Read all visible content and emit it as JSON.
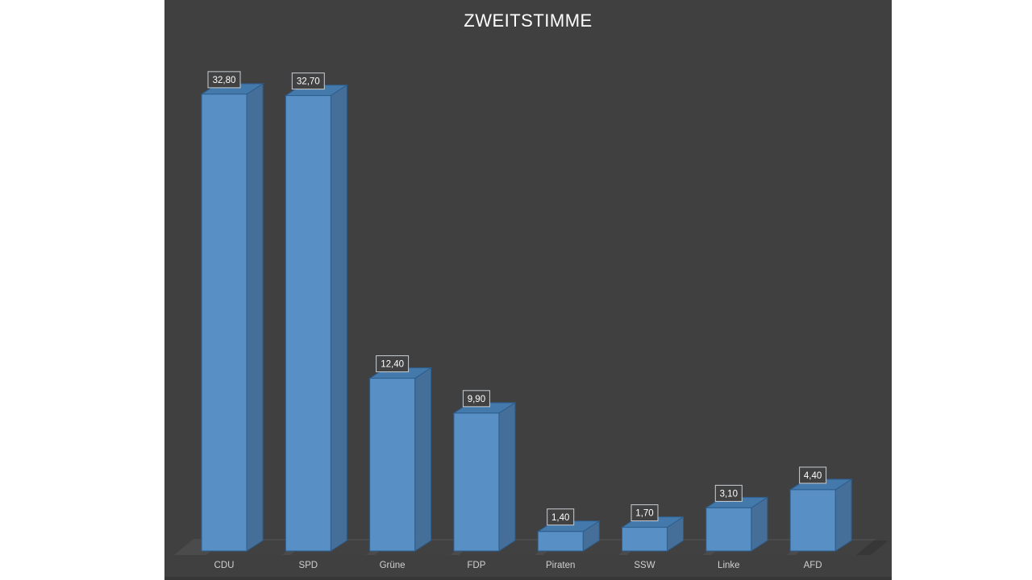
{
  "window": {
    "background": "#ffffff"
  },
  "chart": {
    "title": "ZWEITSTIMME",
    "colors": {
      "background": "#404041",
      "floor": "#4b4b4b",
      "bottom_edge": "#373737",
      "title_text": "#ffffff",
      "category_text": "#cfcfcf",
      "data_label_text": "#ffffff",
      "data_label_border": "#c9ced3",
      "data_label_fill": "#414141",
      "bar_front": "#5890c5",
      "bar_top": "#4479ab",
      "bar_side": "#456f98",
      "bar_stroke": "#2d5d8c",
      "shadow": "rgba(0,0,0,0.13)"
    }
  },
  "chart_data": {
    "type": "bar",
    "style": "3d-column",
    "title": "ZWEITSTIMME",
    "categories": [
      "CDU",
      "SPD",
      "Grüne",
      "FDP",
      "Piraten",
      "SSW",
      "Linke",
      "AFD"
    ],
    "values": [
      32.8,
      32.7,
      12.4,
      9.9,
      1.4,
      1.7,
      3.1,
      4.4
    ],
    "data_labels": [
      "32,80",
      "32,70",
      "12,40",
      "9,90",
      "1,40",
      "1,70",
      "3,10",
      "4,40"
    ],
    "xlabel": "",
    "ylabel": "",
    "ylim": [
      0,
      35
    ],
    "grid": false,
    "legend": false,
    "axis_tick_labels_visible": false
  }
}
